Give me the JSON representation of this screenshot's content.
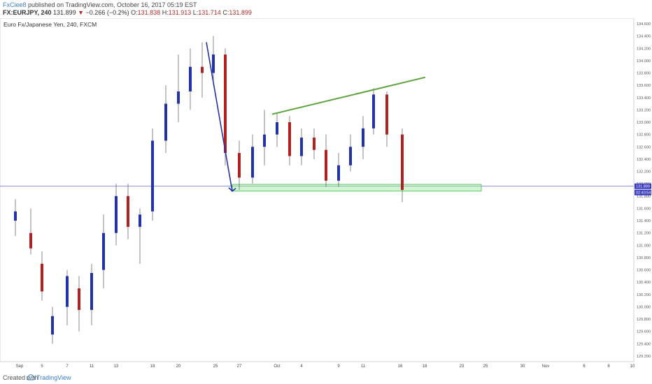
{
  "header": {
    "author": "FxCiee8",
    "published": "published on TradingView.com, October 16, 2017 05:19 EST",
    "symbol": "FX:EURJPY, 240",
    "last": "131.899",
    "change_arrow": "▼",
    "change": "−0.266 (−0.2%)",
    "o_label": "O:",
    "o_value": "131.838",
    "h_label": "H:",
    "h_value": "131.913",
    "l_label": "L:",
    "l_value": "131.714",
    "c_label": "C:",
    "c_value": "131.899"
  },
  "chart_data": {
    "type": "candlestick",
    "title": "Euro Fx/Japanese Yen, 240, FXCM",
    "ylim": [
      129.2,
      134.6
    ],
    "y_ticks": [
      "134.600",
      "134.400",
      "134.200",
      "134.000",
      "133.800",
      "133.600",
      "133.400",
      "133.200",
      "133.000",
      "132.800",
      "132.600",
      "132.400",
      "132.200",
      "132.000",
      "131.800",
      "131.600",
      "131.400",
      "131.200",
      "131.000",
      "130.800",
      "130.600",
      "130.400",
      "130.200",
      "130.000",
      "129.800",
      "129.600",
      "129.400",
      "129.200"
    ],
    "x_ticks": [
      "Sep",
      "5",
      "7",
      "11",
      "13",
      "18",
      "20",
      "25",
      "27",
      "Oct",
      "4",
      "9",
      "11",
      "16",
      "18",
      "23",
      "25",
      "30",
      "Nov",
      "6",
      "8",
      "10"
    ],
    "price_label": "131.899",
    "time_label": "02:40:54",
    "colors": {
      "up": "#2233aa",
      "down": "#b02222",
      "trend": "#5ca33f",
      "arrow": "#2233aa",
      "zone": "#9be89b",
      "hline": "#7b7bd8"
    },
    "trendline": {
      "from": {
        "x": "Oct 1",
        "y": 133.13
      },
      "to": {
        "x": "Oct 19",
        "y": 133.73
      }
    },
    "arrow": {
      "from": {
        "x": "Sep 23",
        "y": 134.3
      },
      "to": {
        "x": "Sep 26",
        "y": 131.88
      }
    },
    "support_zone": {
      "x_start": "Sep 26",
      "x_end": "Oct 20",
      "y_low": 131.88,
      "y_high": 131.99
    },
    "horizontal_line": 131.96,
    "series": [
      {
        "x": "Sep 1",
        "open": 131.4,
        "high": 131.75,
        "low": 131.15,
        "close": 131.55
      },
      {
        "x": "Sep 4",
        "open": 131.2,
        "high": 131.6,
        "low": 130.85,
        "close": 130.95
      },
      {
        "x": "Sep 5",
        "open": 130.7,
        "high": 130.9,
        "low": 130.1,
        "close": 130.25
      },
      {
        "x": "Sep 6",
        "open": 129.55,
        "high": 130.0,
        "low": 129.4,
        "close": 129.85
      },
      {
        "x": "Sep 7",
        "open": 130.0,
        "high": 130.6,
        "low": 129.7,
        "close": 130.5
      },
      {
        "x": "Sep 8",
        "open": 130.3,
        "high": 130.5,
        "low": 129.6,
        "close": 129.95
      },
      {
        "x": "Sep 11",
        "open": 129.95,
        "high": 130.7,
        "low": 129.7,
        "close": 130.55
      },
      {
        "x": "Sep 12",
        "open": 130.6,
        "high": 131.5,
        "low": 130.3,
        "close": 131.2
      },
      {
        "x": "Sep 13",
        "open": 131.2,
        "high": 132.0,
        "low": 131.0,
        "close": 131.8
      },
      {
        "x": "Sep 14",
        "open": 131.8,
        "high": 132.0,
        "low": 131.1,
        "close": 131.3
      },
      {
        "x": "Sep 15",
        "open": 131.3,
        "high": 131.6,
        "low": 130.7,
        "close": 131.5
      },
      {
        "x": "Sep 18",
        "open": 131.55,
        "high": 132.9,
        "low": 131.4,
        "close": 132.7
      },
      {
        "x": "Sep 19",
        "open": 132.7,
        "high": 133.6,
        "low": 132.5,
        "close": 133.3
      },
      {
        "x": "Sep 20",
        "open": 133.3,
        "high": 134.1,
        "low": 133.0,
        "close": 133.5
      },
      {
        "x": "Sep 21",
        "open": 133.5,
        "high": 134.2,
        "low": 133.2,
        "close": 133.9
      },
      {
        "x": "Sep 22",
        "open": 133.9,
        "high": 134.3,
        "low": 133.4,
        "close": 133.8
      },
      {
        "x": "Sep 25",
        "open": 133.8,
        "high": 134.4,
        "low": 133.6,
        "close": 134.1
      },
      {
        "x": "Sep 26",
        "open": 134.1,
        "high": 134.2,
        "low": 132.3,
        "close": 132.5
      },
      {
        "x": "Sep 27",
        "open": 132.5,
        "high": 132.7,
        "low": 131.9,
        "close": 132.1
      },
      {
        "x": "Sep 28",
        "open": 132.1,
        "high": 132.8,
        "low": 132.0,
        "close": 132.6
      },
      {
        "x": "Sep 29",
        "open": 132.6,
        "high": 133.2,
        "low": 132.3,
        "close": 132.8
      },
      {
        "x": "Oct 2",
        "open": 132.8,
        "high": 133.15,
        "low": 132.6,
        "close": 133.0
      },
      {
        "x": "Oct 3",
        "open": 133.0,
        "high": 133.1,
        "low": 132.3,
        "close": 132.45
      },
      {
        "x": "Oct 4",
        "open": 132.45,
        "high": 132.9,
        "low": 132.3,
        "close": 132.75
      },
      {
        "x": "Oct 5",
        "open": 132.75,
        "high": 132.9,
        "low": 132.4,
        "close": 132.55
      },
      {
        "x": "Oct 6",
        "open": 132.55,
        "high": 132.8,
        "low": 131.95,
        "close": 132.05
      },
      {
        "x": "Oct 9",
        "open": 132.05,
        "high": 132.5,
        "low": 131.95,
        "close": 132.3
      },
      {
        "x": "Oct 10",
        "open": 132.3,
        "high": 132.8,
        "low": 132.2,
        "close": 132.6
      },
      {
        "x": "Oct 11",
        "open": 132.6,
        "high": 133.1,
        "low": 132.4,
        "close": 132.9
      },
      {
        "x": "Oct 12",
        "open": 132.9,
        "high": 133.55,
        "low": 132.8,
        "close": 133.45
      },
      {
        "x": "Oct 13",
        "open": 133.45,
        "high": 133.5,
        "low": 132.6,
        "close": 132.8
      },
      {
        "x": "Oct 16",
        "open": 132.8,
        "high": 132.9,
        "low": 131.7,
        "close": 131.9
      }
    ]
  },
  "footer": {
    "created": "Created with",
    "brand": "TradingView"
  }
}
